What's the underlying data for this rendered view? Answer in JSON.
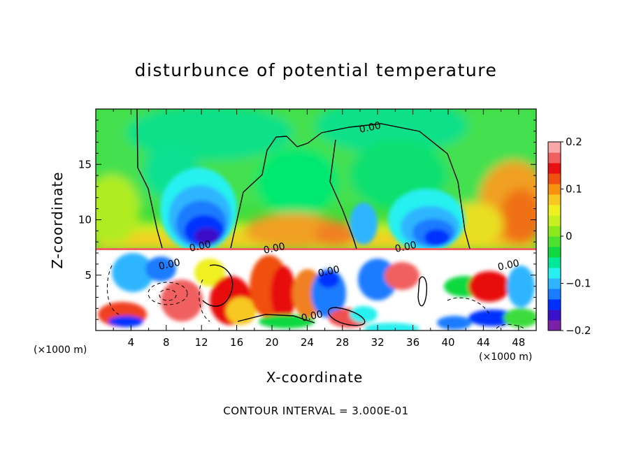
{
  "chart_data": {
    "type": "heatmap",
    "title": "disturbunce of potential temperature",
    "xlabel": "X-coordinate",
    "ylabel": "Z-coordinate",
    "x_unit": "(×1000 m)",
    "xlim": [
      0,
      50
    ],
    "ylim": [
      0,
      20
    ],
    "x_ticks": [
      4,
      8,
      12,
      16,
      20,
      24,
      28,
      32,
      36,
      40,
      44,
      48
    ],
    "y_ticks": [
      5,
      10,
      15
    ],
    "colorbar": {
      "range": [
        -0.2,
        0.2
      ],
      "tick_labels": [
        "0.2",
        "0.1",
        "0",
        "−0.1",
        "−0.2"
      ],
      "tick_values": [
        0.2,
        0.1,
        0,
        -0.1,
        -0.2
      ],
      "colors": [
        "#7b20a8",
        "#3a10c8",
        "#0030ff",
        "#1a7cff",
        "#2fb5ff",
        "#28f0f0",
        "#00e89a",
        "#10d840",
        "#4ce030",
        "#8ce81c",
        "#c8f020",
        "#f0f020",
        "#f8c820",
        "#f89010",
        "#f05010",
        "#e81010",
        "#f06060",
        "#f8a8a8"
      ]
    },
    "contour_labels": [
      "0.00",
      "0.00",
      "0.00",
      "0.00",
      "0.00",
      "0.00",
      "0.00",
      "0.00"
    ],
    "cold_pools": [
      {
        "x_center": 11.5,
        "min_value": -0.2
      },
      {
        "x_center": 38.5,
        "min_value": -0.2
      }
    ],
    "boundary_layer_top": 7.3
  },
  "contour_note": "CONTOUR INTERVAL =  3.000E-01"
}
